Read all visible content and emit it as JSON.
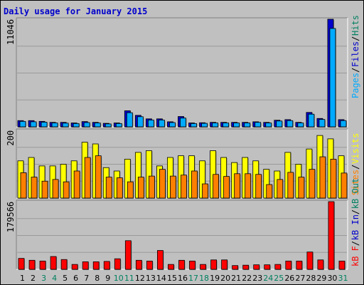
{
  "title": "Daily usage for January 2015",
  "colors": {
    "background": "#c0c0c0",
    "pages": "#0000cc",
    "files": "#00aaff",
    "hits": "#008060",
    "visits": "#ffff00",
    "sites": "#ff8000",
    "kb": "#ff0000",
    "kb_in": "#0000cc",
    "kb_out": "#008060",
    "weekend_label": "#008060",
    "weekday_label": "#000000"
  },
  "chart_data": [
    {
      "type": "bar",
      "name": "hits-files-pages",
      "ylim": [
        0,
        11046
      ],
      "y_tick_label": "11046",
      "legend": [
        "Pages",
        "Files",
        "Hits"
      ],
      "categories": [
        "1",
        "2",
        "3",
        "4",
        "5",
        "6",
        "7",
        "8",
        "9",
        "10",
        "11",
        "12",
        "13",
        "14",
        "15",
        "16",
        "17",
        "18",
        "19",
        "20",
        "21",
        "22",
        "23",
        "24",
        "25",
        "26",
        "27",
        "28",
        "29",
        "30",
        "31"
      ],
      "series": [
        {
          "name": "Hits",
          "values": [
            640,
            640,
            560,
            460,
            460,
            400,
            540,
            460,
            360,
            400,
            1650,
            1180,
            820,
            820,
            520,
            1060,
            400,
            420,
            460,
            460,
            460,
            460,
            520,
            460,
            680,
            740,
            460,
            1480,
            860,
            11046,
            740
          ]
        },
        {
          "name": "Files",
          "values": [
            560,
            520,
            480,
            400,
            380,
            340,
            440,
            400,
            300,
            340,
            1450,
            1040,
            700,
            700,
            440,
            900,
            340,
            360,
            400,
            400,
            400,
            400,
            460,
            400,
            600,
            640,
            400,
            1300,
            760,
            10100,
            640
          ]
        },
        {
          "name": "Pages",
          "values": [
            60,
            60,
            50,
            40,
            40,
            30,
            50,
            40,
            30,
            30,
            120,
            90,
            60,
            60,
            40,
            80,
            30,
            30,
            40,
            40,
            40,
            40,
            40,
            40,
            50,
            60,
            40,
            110,
            70,
            900,
            60
          ]
        }
      ]
    },
    {
      "type": "bar",
      "name": "visits-sites",
      "ylim": [
        0,
        200
      ],
      "y_tick_label": "200",
      "legend": [
        "Sites",
        "Visits"
      ],
      "categories": [
        "1",
        "2",
        "3",
        "4",
        "5",
        "6",
        "7",
        "8",
        "9",
        "10",
        "11",
        "12",
        "13",
        "14",
        "15",
        "16",
        "17",
        "18",
        "19",
        "20",
        "21",
        "22",
        "23",
        "24",
        "25",
        "26",
        "27",
        "28",
        "29",
        "30",
        "31"
      ],
      "series": [
        {
          "name": "Visits",
          "values": [
            110,
            120,
            95,
            95,
            100,
            110,
            165,
            160,
            90,
            80,
            115,
            135,
            140,
            95,
            120,
            125,
            125,
            110,
            140,
            120,
            105,
            120,
            110,
            85,
            80,
            135,
            100,
            145,
            185,
            175,
            125
          ]
        },
        {
          "name": "Sites",
          "values": [
            75,
            62,
            50,
            55,
            48,
            80,
            120,
            125,
            62,
            60,
            48,
            62,
            65,
            85,
            65,
            68,
            80,
            42,
            70,
            64,
            72,
            72,
            70,
            40,
            55,
            76,
            62,
            85,
            122,
            115,
            74
          ]
        }
      ]
    },
    {
      "type": "bar",
      "name": "kbytes",
      "ylim": [
        0,
        179566
      ],
      "y_tick_label": "179566",
      "legend": [
        "kB F",
        "kB In",
        "kB Out"
      ],
      "categories": [
        "1",
        "2",
        "3",
        "4",
        "5",
        "6",
        "7",
        "8",
        "9",
        "10",
        "11",
        "12",
        "13",
        "14",
        "15",
        "16",
        "17",
        "18",
        "19",
        "20",
        "21",
        "22",
        "23",
        "24",
        "25",
        "26",
        "27",
        "28",
        "29",
        "30",
        "31"
      ],
      "series": [
        {
          "name": "kB F",
          "values": [
            29000,
            24000,
            22000,
            34000,
            26000,
            13000,
            20000,
            20000,
            21000,
            28000,
            76000,
            24000,
            22000,
            50000,
            13000,
            24000,
            22000,
            13000,
            25000,
            25000,
            10000,
            11000,
            12000,
            12000,
            13000,
            22000,
            22000,
            46000,
            25000,
            179566,
            22000
          ]
        }
      ]
    }
  ],
  "days": [
    "1",
    "2",
    "3",
    "4",
    "5",
    "6",
    "7",
    "8",
    "9",
    "10",
    "11",
    "12",
    "13",
    "14",
    "15",
    "16",
    "17",
    "18",
    "19",
    "20",
    "21",
    "22",
    "23",
    "24",
    "25",
    "26",
    "27",
    "28",
    "29",
    "30",
    "31"
  ],
  "weekend_days": [
    "3",
    "4",
    "10",
    "11",
    "17",
    "18",
    "24",
    "25",
    "31"
  ]
}
